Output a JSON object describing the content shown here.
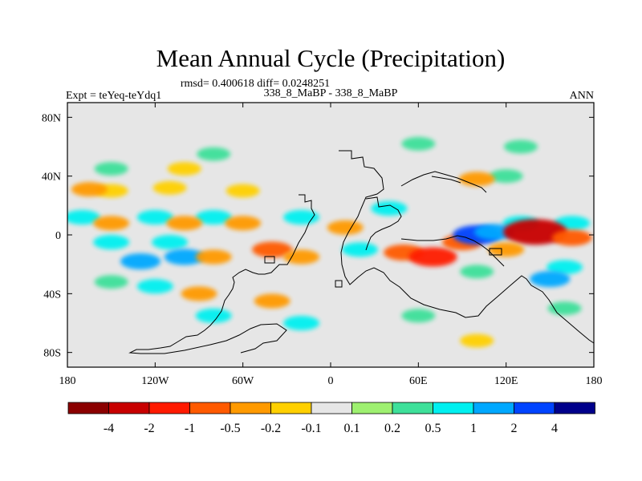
{
  "chart_data": {
    "type": "heatmap",
    "title": "Mean Annual Cycle (Precipitation)",
    "stats_text": "rmsd= 0.400618 diff= 0.0248251",
    "left_label": "Expt = teYeq-teYdq1",
    "center_label": "338_8_MaBP - 338_8_MaBP",
    "right_label": "ANN",
    "x_range": [
      -180,
      180
    ],
    "y_range": [
      -90,
      90
    ],
    "x_ticks": [
      {
        "value": -180,
        "label": "180"
      },
      {
        "value": -120,
        "label": "120W"
      },
      {
        "value": -60,
        "label": "60W"
      },
      {
        "value": 0,
        "label": "0"
      },
      {
        "value": 60,
        "label": "60E"
      },
      {
        "value": 120,
        "label": "120E"
      },
      {
        "value": 180,
        "label": "180"
      }
    ],
    "y_ticks": [
      {
        "value": 80,
        "label": "80N"
      },
      {
        "value": 40,
        "label": "40N"
      },
      {
        "value": 0,
        "label": "0"
      },
      {
        "value": -40,
        "label": "40S"
      },
      {
        "value": -80,
        "label": "80S"
      }
    ],
    "colorbar": {
      "colors": [
        "#8b0000",
        "#c80000",
        "#ff1a00",
        "#ff5a00",
        "#ff9a00",
        "#ffd000",
        "#e6e6e6",
        "#9ef070",
        "#3ee09a",
        "#00f0f0",
        "#00a8ff",
        "#0044ff",
        "#00008b"
      ],
      "labels": [
        "-4",
        "-2",
        "-1",
        "-0.5",
        "-0.2",
        "-0.1",
        "0.1",
        "0.2",
        "0.5",
        "1",
        "2",
        "4"
      ]
    },
    "anomalies": [
      {
        "lon": -150,
        "lat": 30,
        "value": -0.2
      },
      {
        "lon": -165,
        "lat": 31,
        "value": -0.5
      },
      {
        "lon": -110,
        "lat": 32,
        "value": -0.2
      },
      {
        "lon": -60,
        "lat": 30,
        "value": -0.2
      },
      {
        "lon": -100,
        "lat": 45,
        "value": -0.2
      },
      {
        "lon": -150,
        "lat": 45,
        "value": 0.2
      },
      {
        "lon": -80,
        "lat": 55,
        "value": 0.2
      },
      {
        "lon": 60,
        "lat": 62,
        "value": 0.2
      },
      {
        "lon": 130,
        "lat": 60,
        "value": 0.2
      },
      {
        "lon": 120,
        "lat": 40,
        "value": 0.2
      },
      {
        "lon": 100,
        "lat": 38,
        "value": -0.5
      },
      {
        "lon": -170,
        "lat": 12,
        "value": 0.5
      },
      {
        "lon": -120,
        "lat": 12,
        "value": 0.5
      },
      {
        "lon": -80,
        "lat": 12,
        "value": 0.5
      },
      {
        "lon": -150,
        "lat": 8,
        "value": -0.5
      },
      {
        "lon": -100,
        "lat": 8,
        "value": -0.5
      },
      {
        "lon": -60,
        "lat": 8,
        "value": -0.5
      },
      {
        "lon": 130,
        "lat": 8,
        "value": 0.5
      },
      {
        "lon": 165,
        "lat": 8,
        "value": 0.5
      },
      {
        "lon": -20,
        "lat": 12,
        "value": 0.5
      },
      {
        "lon": 10,
        "lat": 5,
        "value": -0.5
      },
      {
        "lon": 40,
        "lat": 18,
        "value": 0.5
      },
      {
        "lon": -150,
        "lat": -5,
        "value": 0.5
      },
      {
        "lon": -110,
        "lat": -5,
        "value": 0.5
      },
      {
        "lon": -130,
        "lat": -18,
        "value": 1
      },
      {
        "lon": -100,
        "lat": -15,
        "value": 1
      },
      {
        "lon": -80,
        "lat": -15,
        "value": -0.5
      },
      {
        "lon": -40,
        "lat": -10,
        "value": -1
      },
      {
        "lon": -20,
        "lat": -15,
        "value": -0.5
      },
      {
        "lon": 20,
        "lat": -10,
        "value": 0.5
      },
      {
        "lon": 50,
        "lat": -12,
        "value": -1
      },
      {
        "lon": 70,
        "lat": -15,
        "value": -2
      },
      {
        "lon": 90,
        "lat": -5,
        "value": -1
      },
      {
        "lon": 100,
        "lat": 0,
        "value": 2
      },
      {
        "lon": 112,
        "lat": 2,
        "value": 1
      },
      {
        "lon": 140,
        "lat": 2,
        "value": -4
      },
      {
        "lon": 165,
        "lat": -2,
        "value": -1
      },
      {
        "lon": 120,
        "lat": -10,
        "value": -0.5
      },
      {
        "lon": 160,
        "lat": -22,
        "value": 0.5
      },
      {
        "lon": 150,
        "lat": -30,
        "value": 1
      },
      {
        "lon": 100,
        "lat": -25,
        "value": 0.2
      },
      {
        "lon": -150,
        "lat": -32,
        "value": 0.2
      },
      {
        "lon": -120,
        "lat": -35,
        "value": 0.5
      },
      {
        "lon": -90,
        "lat": -40,
        "value": -0.5
      },
      {
        "lon": -40,
        "lat": -45,
        "value": -0.5
      },
      {
        "lon": -80,
        "lat": -55,
        "value": 0.5
      },
      {
        "lon": -20,
        "lat": -60,
        "value": 0.5
      },
      {
        "lon": 60,
        "lat": -55,
        "value": 0.2
      },
      {
        "lon": 100,
        "lat": -72,
        "value": -0.2
      },
      {
        "lon": 160,
        "lat": -50,
        "value": 0.2
      }
    ]
  }
}
